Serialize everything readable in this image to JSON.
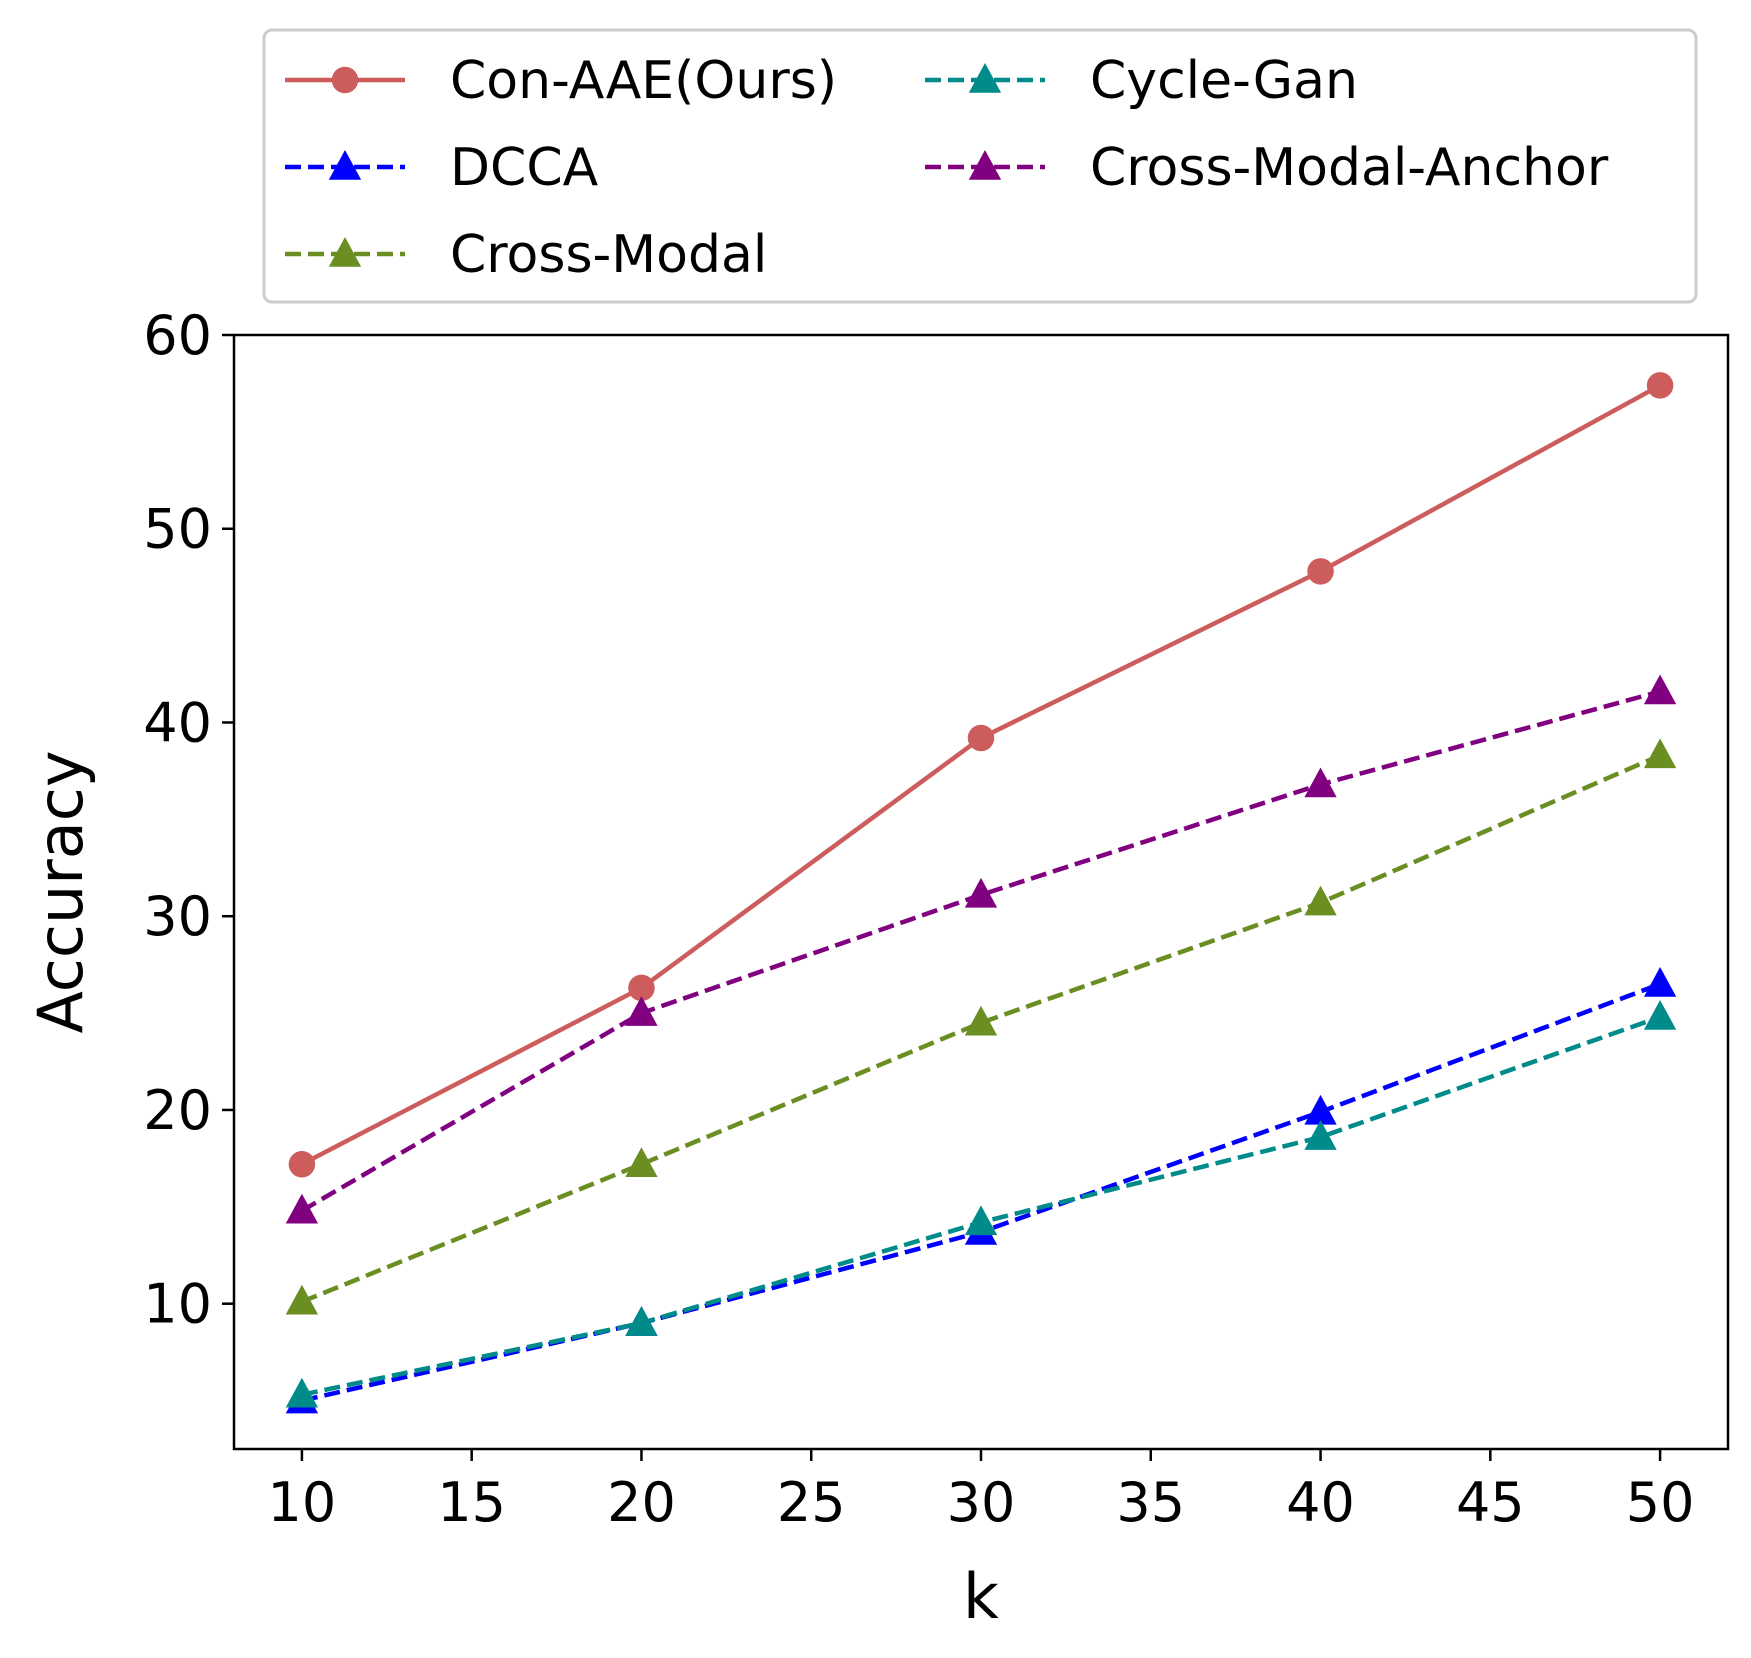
{
  "chart_data": {
    "type": "line",
    "title": "",
    "xlabel": "k",
    "ylabel": "Accuracy",
    "xlim": [
      8,
      52
    ],
    "ylim": [
      2.5,
      60
    ],
    "xticks": [
      10,
      15,
      20,
      25,
      30,
      35,
      40,
      45,
      50
    ],
    "yticks": [
      10,
      20,
      30,
      40,
      50,
      60
    ],
    "grid": false,
    "legend_position": "top, outside plot",
    "x": [
      10,
      20,
      30,
      40,
      50
    ],
    "series": [
      {
        "name": "Con-AAE(Ours)",
        "values": [
          17.2,
          26.3,
          39.2,
          47.8,
          57.4
        ],
        "color": "#cd5c5c",
        "line": "solid",
        "marker": "circle"
      },
      {
        "name": "DCCA",
        "values": [
          5.0,
          9.0,
          13.7,
          19.9,
          26.5
        ],
        "color": "#0000ff",
        "line": "dashed",
        "marker": "triangle"
      },
      {
        "name": "Cross-Modal",
        "values": [
          10.1,
          17.2,
          24.5,
          30.7,
          38.3
        ],
        "color": "#6b8e23",
        "line": "dashed",
        "marker": "triangle"
      },
      {
        "name": "Cycle-Gan",
        "values": [
          5.3,
          9.0,
          14.2,
          18.6,
          24.8
        ],
        "color": "#008b8b",
        "line": "dashed",
        "marker": "triangle"
      },
      {
        "name": "Cross-Modal-Anchor",
        "values": [
          14.8,
          25.0,
          31.1,
          36.8,
          41.6
        ],
        "color": "#800080",
        "line": "dashed",
        "marker": "triangle"
      }
    ]
  }
}
